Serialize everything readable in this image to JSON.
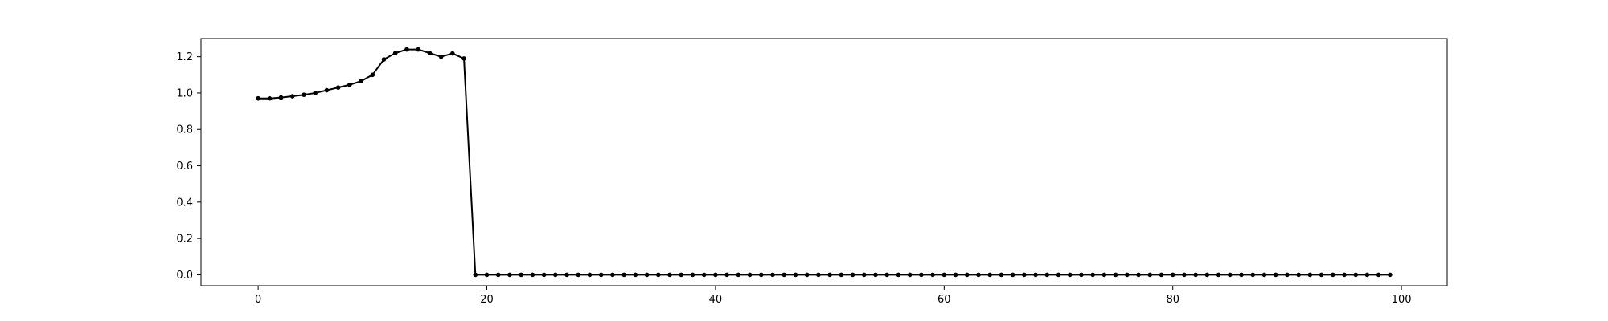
{
  "chart_data": {
    "type": "line",
    "title": "",
    "xlabel": "",
    "ylabel": "",
    "xlim": [
      -5,
      104
    ],
    "ylim": [
      -0.06,
      1.3
    ],
    "x_ticks": [
      0,
      20,
      40,
      60,
      80,
      100
    ],
    "x_tick_labels": [
      "0",
      "20",
      "40",
      "60",
      "80",
      "100"
    ],
    "y_ticks": [
      0.0,
      0.2,
      0.4,
      0.6,
      0.8,
      1.0,
      1.2
    ],
    "y_tick_labels": [
      "0.0",
      "0.2",
      "0.4",
      "0.6",
      "0.8",
      "1.0",
      "1.2"
    ],
    "grid": false,
    "series": [
      {
        "color": "#000000",
        "marker": "dot",
        "x": [
          0,
          1,
          2,
          3,
          4,
          5,
          6,
          7,
          8,
          9,
          10,
          11,
          12,
          13,
          14,
          15,
          16,
          17,
          18,
          19,
          20,
          21,
          22,
          23,
          24,
          25,
          26,
          27,
          28,
          29,
          30,
          31,
          32,
          33,
          34,
          35,
          36,
          37,
          38,
          39,
          40,
          41,
          42,
          43,
          44,
          45,
          46,
          47,
          48,
          49,
          50,
          51,
          52,
          53,
          54,
          55,
          56,
          57,
          58,
          59,
          60,
          61,
          62,
          63,
          64,
          65,
          66,
          67,
          68,
          69,
          70,
          71,
          72,
          73,
          74,
          75,
          76,
          77,
          78,
          79,
          80,
          81,
          82,
          83,
          84,
          85,
          86,
          87,
          88,
          89,
          90,
          91,
          92,
          93,
          94,
          95,
          96,
          97,
          98,
          99
        ],
        "values": [
          0.97,
          0.97,
          0.975,
          0.982,
          0.99,
          1.0,
          1.015,
          1.03,
          1.045,
          1.065,
          1.1,
          1.185,
          1.22,
          1.24,
          1.24,
          1.22,
          1.2,
          1.218,
          1.19,
          0.0,
          0,
          0,
          0,
          0,
          0,
          0,
          0,
          0,
          0,
          0,
          0,
          0,
          0,
          0,
          0,
          0,
          0,
          0,
          0,
          0,
          0,
          0,
          0,
          0,
          0,
          0,
          0,
          0,
          0,
          0,
          0,
          0,
          0,
          0,
          0,
          0,
          0,
          0,
          0,
          0,
          0,
          0,
          0,
          0,
          0,
          0,
          0,
          0,
          0,
          0,
          0,
          0,
          0,
          0,
          0,
          0,
          0,
          0,
          0,
          0,
          0,
          0,
          0,
          0,
          0,
          0,
          0,
          0,
          0,
          0,
          0,
          0,
          0,
          0,
          0,
          0,
          0,
          0,
          0,
          0
        ]
      }
    ]
  }
}
